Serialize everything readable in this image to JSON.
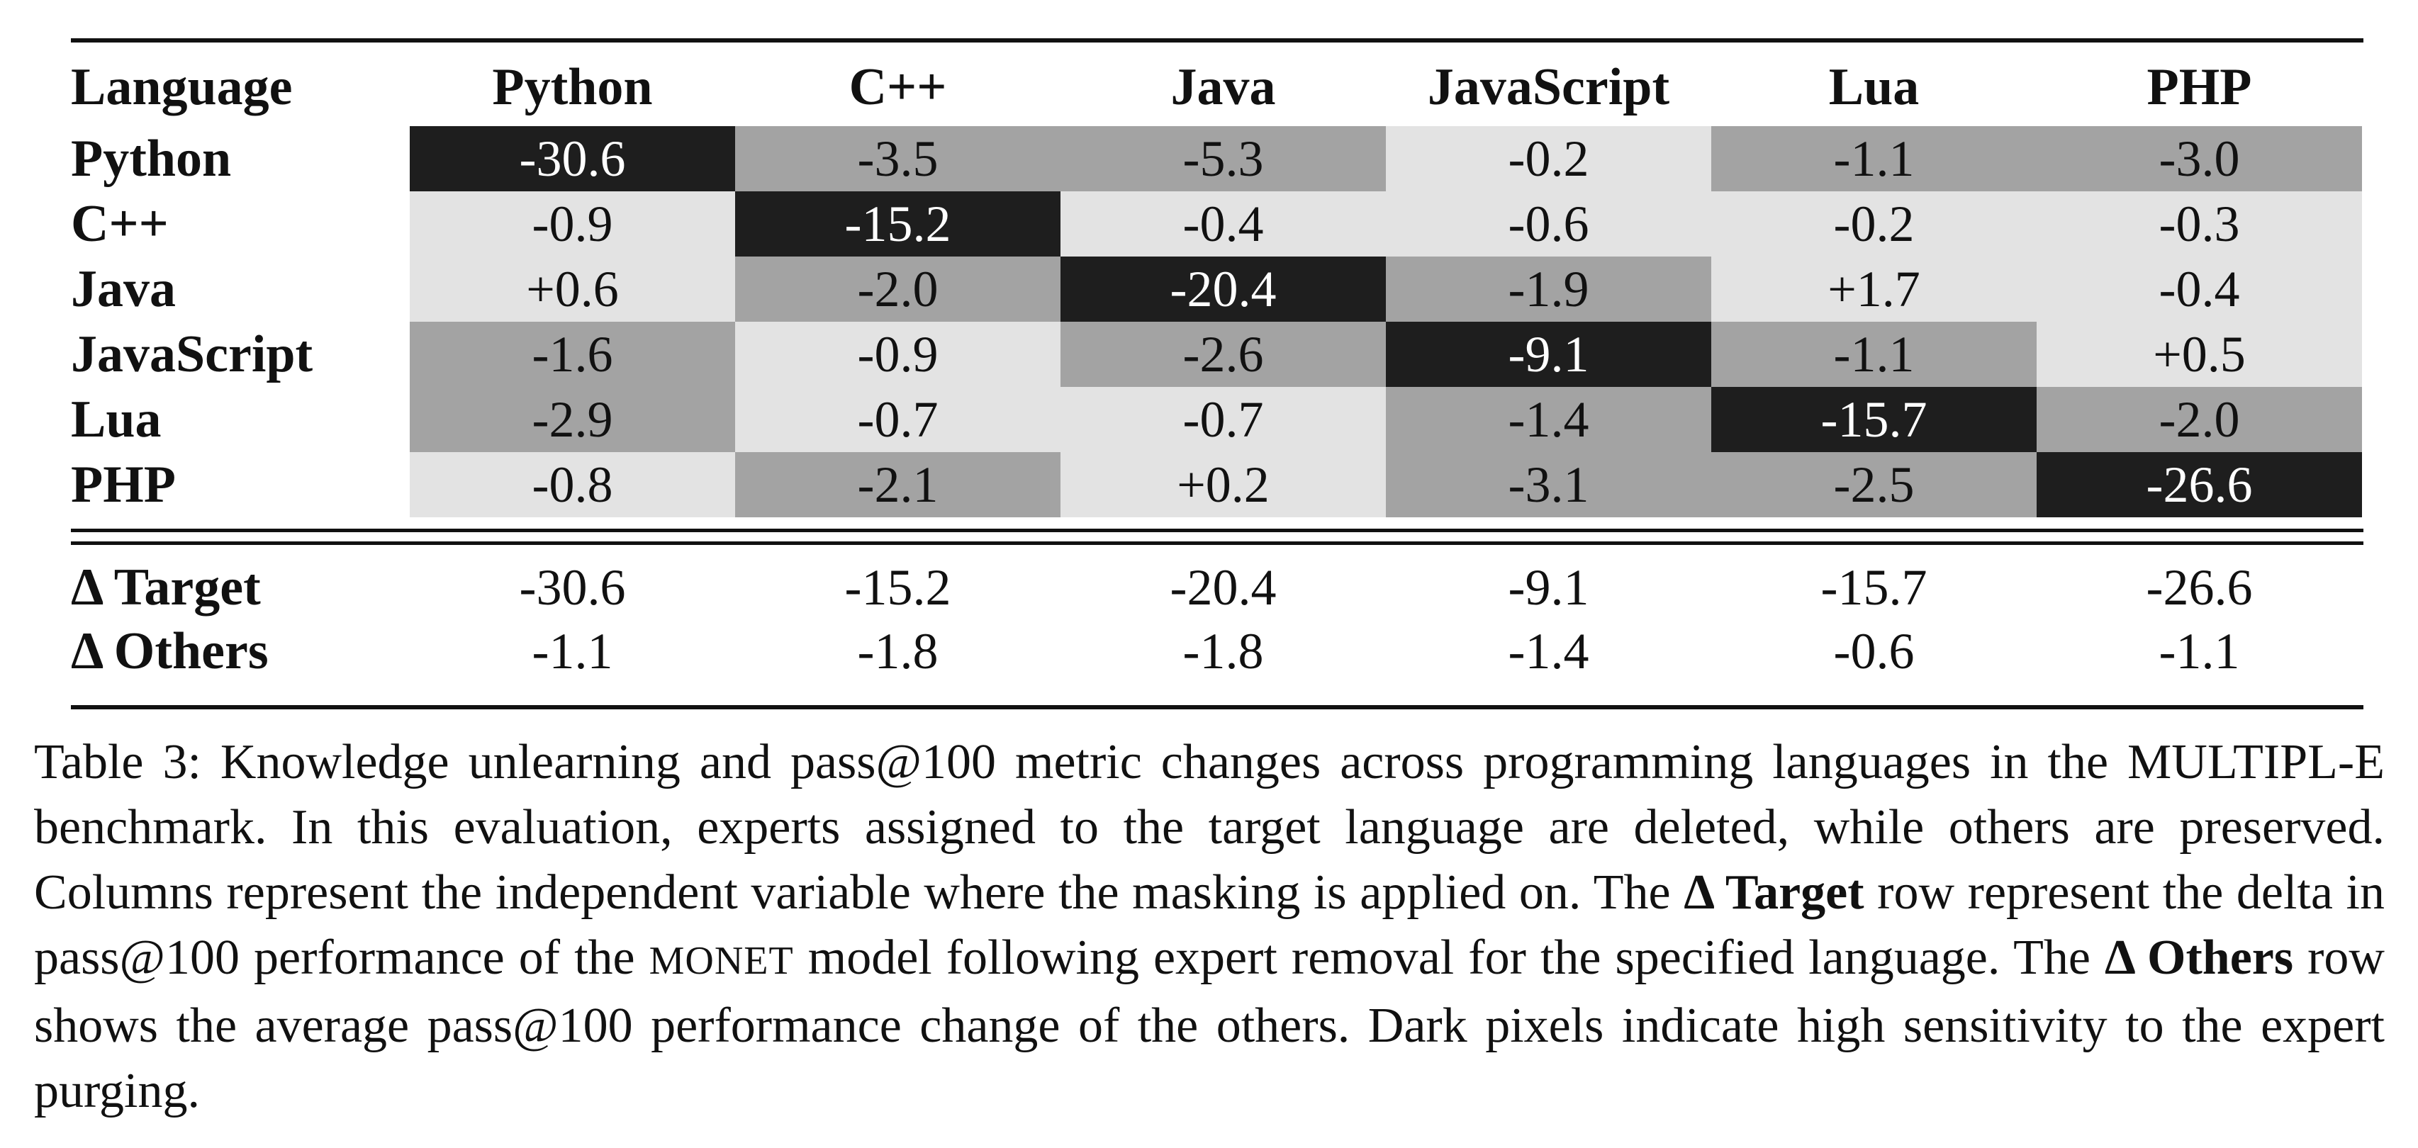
{
  "table": {
    "corner_label": "Language",
    "columns": [
      "Python",
      "C++",
      "Java",
      "JavaScript",
      "Lua",
      "PHP"
    ],
    "rows": [
      {
        "label": "Python",
        "values": [
          "-30.6",
          "-3.5",
          "-5.3",
          "-0.2",
          "-1.1",
          "-3.0"
        ],
        "shade": [
          3,
          2,
          2,
          1,
          2,
          2
        ]
      },
      {
        "label": "C++",
        "values": [
          "-0.9",
          "-15.2",
          "-0.4",
          "-0.6",
          "-0.2",
          "-0.3"
        ],
        "shade": [
          1,
          3,
          1,
          1,
          1,
          1
        ]
      },
      {
        "label": "Java",
        "values": [
          "+0.6",
          "-2.0",
          "-20.4",
          "-1.9",
          "+1.7",
          "-0.4"
        ],
        "shade": [
          1,
          2,
          3,
          2,
          1,
          1
        ]
      },
      {
        "label": "JavaScript",
        "values": [
          "-1.6",
          "-0.9",
          "-2.6",
          "-9.1",
          "-1.1",
          "+0.5"
        ],
        "shade": [
          2,
          1,
          2,
          3,
          2,
          1
        ]
      },
      {
        "label": "Lua",
        "values": [
          "-2.9",
          "-0.7",
          "-0.7",
          "-1.4",
          "-15.7",
          "-2.0"
        ],
        "shade": [
          2,
          1,
          1,
          2,
          3,
          2
        ]
      },
      {
        "label": "PHP",
        "values": [
          "-0.8",
          "-2.1",
          "+0.2",
          "-3.1",
          "-2.5",
          "-26.6"
        ],
        "shade": [
          1,
          2,
          1,
          2,
          2,
          3
        ]
      }
    ],
    "delta_target": {
      "label": "Δ Target",
      "values": [
        "-30.6",
        "-15.2",
        "-20.4",
        "-9.1",
        "-15.7",
        "-26.6"
      ]
    },
    "delta_others": {
      "label": "Δ Others",
      "values": [
        "-1.1",
        "-1.8",
        "-1.8",
        "-1.4",
        "-0.6",
        "-1.1"
      ]
    }
  },
  "colors": {
    "shade_1": "#e3e3e3",
    "shade_2": "#a3a3a3",
    "shade_3": "#1e1e1e"
  },
  "caption": {
    "part1": "Table 3: Knowledge unlearning and pass@100 metric changes across programming languages in the MULTIPL-E benchmark. In this evaluation, experts assigned to the target language are deleted, while others are preserved. Columns represent the independent variable where the masking is applied on. The ",
    "bold1": "Δ Target",
    "part2": " row represent the delta in pass@100 performance of the ",
    "model_name": "MONET",
    "part3": " model following expert removal for the specified language. The ",
    "bold2": "Δ Others",
    "part4": " row shows the average pass@100 performance change of the others. Dark pixels indicate high sensitivity to the expert purging."
  }
}
